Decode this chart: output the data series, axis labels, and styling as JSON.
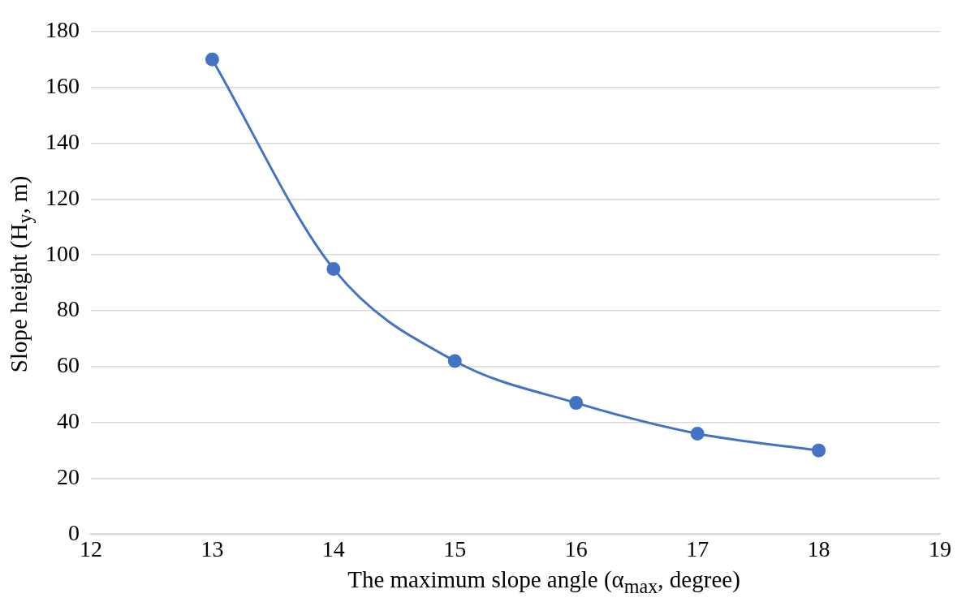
{
  "chart_data": {
    "type": "line",
    "xlabel": "The maximum slope angle (α$_{max}$, degree)",
    "ylabel": "Slope height (H$_{y}$, m)",
    "x": [
      13,
      14,
      15,
      16,
      17,
      18
    ],
    "series": [
      {
        "color": "#4472c4",
        "values": [
          170,
          95,
          62,
          47,
          36,
          30
        ]
      }
    ],
    "xlim": [
      12,
      19
    ],
    "xticks": [
      12,
      13,
      14,
      15,
      16,
      17,
      18,
      19
    ],
    "ylim": [
      0,
      180
    ],
    "yticks": [
      0,
      20,
      40,
      60,
      80,
      100,
      120,
      140,
      160,
      180
    ],
    "grid": "y",
    "legend": false,
    "marker": "circle",
    "line_style": "solid"
  }
}
